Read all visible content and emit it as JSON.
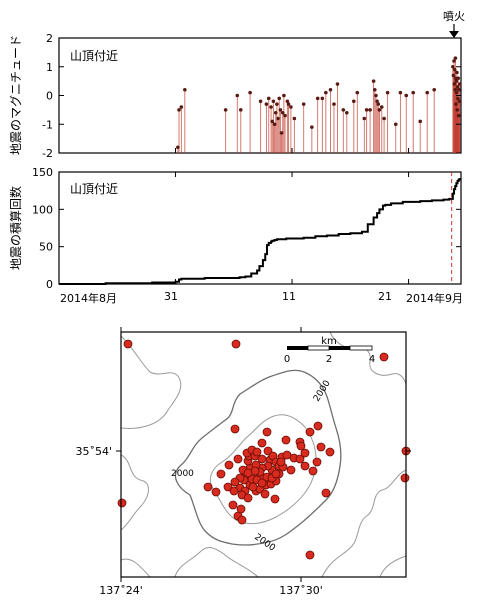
{
  "chart_data": [
    {
      "type": "scatter",
      "subtype": "stem",
      "annotation": "山頂付近",
      "ylabel": "地震のマグニチュード",
      "ylim": [
        -2,
        2
      ],
      "yticks": [
        2,
        1,
        0,
        -1,
        -2
      ],
      "xlim": [
        0,
        34.5
      ],
      "x_tick_positions": [
        0,
        10,
        20,
        30
      ],
      "grid": false,
      "baseline": -2,
      "color": "#c0392b",
      "eruption_label": "噴火",
      "eruption_x": 33.7,
      "points": [
        [
          10.2,
          -1.8
        ],
        [
          10.3,
          -0.5
        ],
        [
          10.5,
          -0.4
        ],
        [
          10.8,
          0.2
        ],
        [
          14.3,
          -0.5
        ],
        [
          15.3,
          0.0
        ],
        [
          15.6,
          -0.5
        ],
        [
          16.4,
          0.1
        ],
        [
          17.3,
          -0.2
        ],
        [
          17.8,
          -0.3
        ],
        [
          18.0,
          -0.1
        ],
        [
          18.2,
          -0.4
        ],
        [
          18.3,
          -0.9
        ],
        [
          18.4,
          -0.2
        ],
        [
          18.5,
          -1.0
        ],
        [
          18.6,
          -0.6
        ],
        [
          18.7,
          -0.3
        ],
        [
          18.8,
          -0.8
        ],
        [
          18.9,
          -0.1
        ],
        [
          19.0,
          -0.5
        ],
        [
          19.1,
          -1.3
        ],
        [
          19.2,
          -0.6
        ],
        [
          19.3,
          0.0
        ],
        [
          19.4,
          -0.7
        ],
        [
          19.6,
          -0.2
        ],
        [
          19.7,
          -0.3
        ],
        [
          19.9,
          -0.4
        ],
        [
          20.2,
          -0.8
        ],
        [
          21.0,
          -0.3
        ],
        [
          21.7,
          -1.1
        ],
        [
          22.2,
          -0.1
        ],
        [
          22.6,
          -0.1
        ],
        [
          22.9,
          0.1
        ],
        [
          23.3,
          0.2
        ],
        [
          23.6,
          -0.3
        ],
        [
          23.9,
          0.4
        ],
        [
          24.4,
          -0.5
        ],
        [
          24.7,
          -0.6
        ],
        [
          25.3,
          -0.2
        ],
        [
          25.6,
          0.1
        ],
        [
          26.2,
          -0.8
        ],
        [
          26.4,
          -0.5
        ],
        [
          26.7,
          -0.5
        ],
        [
          27.0,
          0.5
        ],
        [
          27.1,
          0.2
        ],
        [
          27.2,
          0.0
        ],
        [
          27.3,
          -0.2
        ],
        [
          27.4,
          -0.3
        ],
        [
          27.5,
          -0.5
        ],
        [
          27.7,
          -0.4
        ],
        [
          27.9,
          -0.8
        ],
        [
          28.2,
          0.1
        ],
        [
          28.9,
          -1.0
        ],
        [
          29.3,
          0.1
        ],
        [
          29.8,
          0.0
        ],
        [
          30.4,
          0.1
        ],
        [
          31.0,
          -0.9
        ],
        [
          31.6,
          0.1
        ],
        [
          32.2,
          0.2
        ],
        [
          33.8,
          1.0
        ],
        [
          33.85,
          0.7
        ],
        [
          33.9,
          1.2
        ],
        [
          33.93,
          0.4
        ],
        [
          33.96,
          0.9
        ],
        [
          34.0,
          0.2
        ],
        [
          34.02,
          1.3
        ],
        [
          34.05,
          0.6
        ],
        [
          34.07,
          -0.3
        ],
        [
          34.1,
          0.5
        ],
        [
          34.12,
          0.1
        ],
        [
          34.15,
          0.8
        ],
        [
          34.18,
          -0.5
        ],
        [
          34.2,
          0.3
        ],
        [
          34.23,
          -0.1
        ],
        [
          34.26,
          0.6
        ],
        [
          34.3,
          -0.7
        ],
        [
          34.33,
          0.2
        ],
        [
          34.36,
          -0.2
        ],
        [
          34.4,
          0.4
        ]
      ]
    },
    {
      "type": "line",
      "subtype": "step",
      "annotation": "山頂付近",
      "ylabel": "地震の積算回数",
      "ylim": [
        0,
        150
      ],
      "yticks": [
        150,
        100,
        50,
        0
      ],
      "xlim": [
        0,
        34.5
      ],
      "grid": false,
      "eruption_x": 33.7,
      "x": [
        0,
        1,
        2,
        3,
        4,
        5,
        6,
        7,
        8,
        9,
        10,
        10.3,
        10.5,
        11.5,
        12.5,
        13.5,
        14.5,
        15.5,
        16,
        16.5,
        17,
        17.2,
        17.5,
        17.7,
        17.85,
        18,
        18.2,
        18.3,
        18.5,
        18.7,
        19,
        19.5,
        20,
        21,
        22,
        23,
        24,
        25,
        26,
        26.5,
        27,
        27.3,
        27.5,
        27.8,
        28,
        28.5,
        29,
        29.5,
        30,
        31,
        32,
        33,
        33.5,
        33.7,
        33.8,
        33.9,
        34.0,
        34.1,
        34.2,
        34.3,
        34.4
      ],
      "y": [
        0,
        0,
        0,
        0,
        1,
        1,
        1,
        1,
        2,
        2,
        3,
        6,
        7,
        7,
        8,
        8,
        8,
        9,
        10,
        14,
        18,
        24,
        32,
        40,
        52,
        55,
        57,
        58,
        59,
        60,
        60,
        61,
        61,
        62,
        64,
        65,
        67,
        68,
        70,
        80,
        89,
        95,
        100,
        105,
        106,
        108,
        108,
        110,
        110,
        111,
        112,
        113,
        114,
        114,
        121,
        127,
        131,
        135,
        138,
        140,
        142
      ]
    },
    {
      "type": "scatter",
      "subtype": "map",
      "scalebar_label": "km",
      "scalebar_ticks": [
        "0",
        "2",
        "4"
      ],
      "contour_labels": [
        "2000",
        "2000",
        "2000"
      ],
      "lat_label": "35˚54'",
      "lon_labels": [
        "137˚24'",
        "137˚30'"
      ],
      "color": "#d62b1e",
      "epicenters": [
        [
          128,
          344
        ],
        [
          236,
          344
        ],
        [
          122,
          503
        ],
        [
          405,
          478
        ],
        [
          406,
          451
        ],
        [
          384,
          357
        ],
        [
          235,
          429
        ],
        [
          238,
          459
        ],
        [
          262,
          443
        ],
        [
          267,
          432
        ],
        [
          228,
          487
        ],
        [
          216,
          492
        ],
        [
          208,
          487
        ],
        [
          221,
          474
        ],
        [
          246,
          476
        ],
        [
          257,
          477
        ],
        [
          272,
          470
        ],
        [
          279,
          474
        ],
        [
          291,
          470
        ],
        [
          294,
          458
        ],
        [
          286,
          440
        ],
        [
          300,
          442
        ],
        [
          301,
          446
        ],
        [
          305,
          466
        ],
        [
          310,
          432
        ],
        [
          313,
          471
        ],
        [
          317,
          462
        ],
        [
          318,
          426
        ],
        [
          321,
          447
        ],
        [
          330,
          452
        ],
        [
          250,
          468
        ],
        [
          248,
          461
        ],
        [
          249,
          456
        ],
        [
          255,
          456
        ],
        [
          262,
          459
        ],
        [
          270,
          460
        ],
        [
          268,
          466
        ],
        [
          262,
          468
        ],
        [
          256,
          465
        ],
        [
          243,
          470
        ],
        [
          244,
          480
        ],
        [
          250,
          485
        ],
        [
          256,
          491
        ],
        [
          260,
          489
        ],
        [
          266,
          485
        ],
        [
          271,
          484
        ],
        [
          276,
          481
        ],
        [
          240,
          488
        ],
        [
          234,
          491
        ],
        [
          245,
          491
        ],
        [
          252,
          479
        ],
        [
          262,
          477
        ],
        [
          267,
          477
        ],
        [
          272,
          478
        ],
        [
          260,
          472
        ],
        [
          255,
          471
        ],
        [
          240,
          478
        ],
        [
          235,
          482
        ],
        [
          242,
          495
        ],
        [
          248,
          498
        ],
        [
          268,
          451
        ],
        [
          273,
          456
        ],
        [
          276,
          462
        ],
        [
          279,
          466
        ],
        [
          265,
          494
        ],
        [
          247,
          453
        ],
        [
          252,
          450
        ],
        [
          257,
          452
        ],
        [
          233,
          505
        ],
        [
          238,
          516
        ],
        [
          242,
          520
        ],
        [
          275,
          499
        ],
        [
          282,
          457
        ],
        [
          283,
          467
        ],
        [
          287,
          455
        ],
        [
          229,
          465
        ],
        [
          326,
          493
        ],
        [
          241,
          509
        ],
        [
          257,
          480
        ],
        [
          262,
          483
        ],
        [
          248,
          473
        ],
        [
          253,
          487
        ],
        [
          310,
          555
        ],
        [
          281,
          462
        ],
        [
          276,
          474
        ],
        [
          300,
          459
        ],
        [
          305,
          453
        ]
      ]
    }
  ],
  "x_axis": {
    "label_left": "2014年8月",
    "label_31": "31",
    "label_11": "11",
    "label_21": "21",
    "label_right": "2014年9月"
  }
}
